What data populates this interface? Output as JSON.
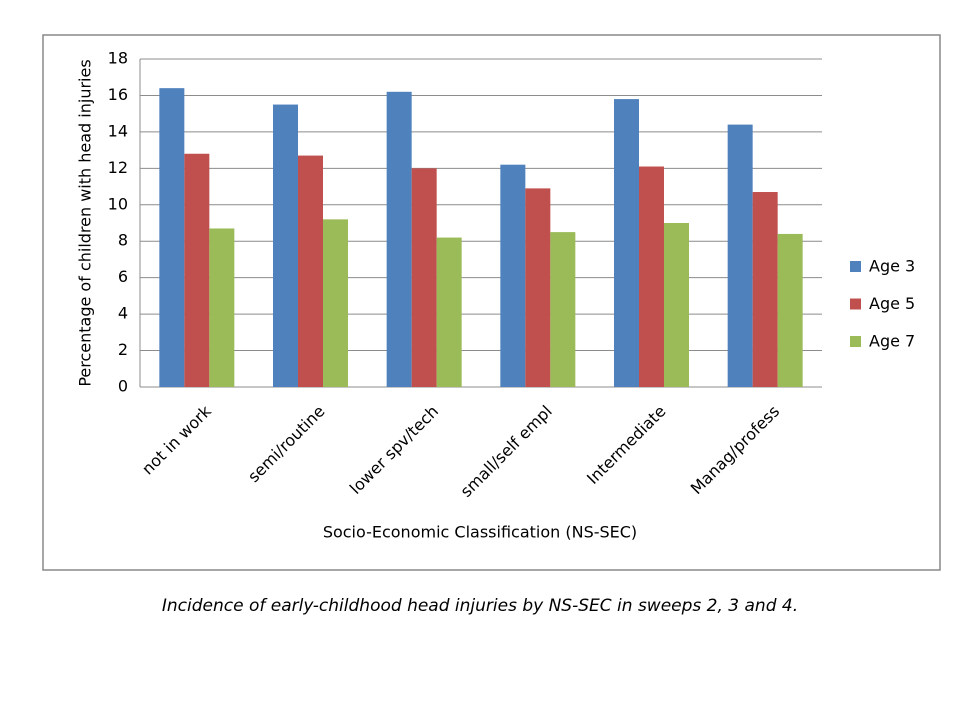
{
  "chart_data": {
    "type": "bar",
    "categories": [
      "not in work",
      "semi/routine",
      "lower spv/tech",
      "small/self empl",
      "Intermediate",
      "Manag/profess"
    ],
    "series": [
      {
        "name": "Age 3",
        "color": "#4f81bd",
        "values": [
          16.4,
          15.5,
          16.2,
          12.2,
          15.8,
          14.4
        ]
      },
      {
        "name": "Age 5",
        "color": "#c0504d",
        "values": [
          12.8,
          12.7,
          12.0,
          10.9,
          12.1,
          10.7
        ]
      },
      {
        "name": "Age 7",
        "color": "#9bbb59",
        "values": [
          8.7,
          9.2,
          8.2,
          8.5,
          9.0,
          8.4
        ]
      }
    ],
    "x_label": "Socio-Economic Classification (NS-SEC)",
    "y_label": "Percentage of children with head injuries",
    "ylim": [
      0,
      18
    ],
    "yticks": [
      0,
      2,
      4,
      6,
      8,
      10,
      12,
      14,
      16,
      18
    ],
    "grid": true,
    "legend": "right",
    "caption": "Incidence of early-childhood head injuries by NS-SEC in sweeps 2, 3 and 4."
  }
}
